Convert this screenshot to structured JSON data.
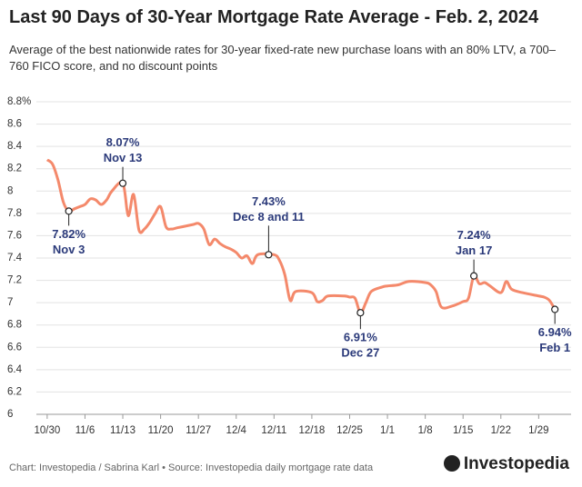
{
  "chart_data": {
    "type": "line",
    "title": "Last 90 Days of 30-Year Mortgage Rate Average - Feb. 2, 2024",
    "subtitle": "Average of the best nationwide rates for 30-year fixed-rate new purchase loans with an 80% LTV, a 700–760 FICO score, and no discount points",
    "x": [
      0,
      1,
      2,
      3,
      4,
      5,
      6,
      7,
      8,
      9,
      10,
      11,
      12,
      14,
      15,
      16,
      17,
      18,
      19,
      20,
      21,
      22,
      23,
      24,
      25,
      27,
      28,
      29,
      30,
      31,
      32,
      33,
      34,
      35,
      36,
      37,
      38,
      39,
      42,
      43,
      44,
      45,
      46,
      49,
      50,
      51,
      52,
      55,
      56,
      57,
      58,
      59,
      60,
      62,
      63,
      65,
      67,
      70,
      71,
      72,
      73,
      75,
      77,
      78,
      79,
      80,
      81,
      82,
      84,
      85,
      86,
      88,
      91,
      92,
      93,
      94
    ],
    "series": [
      {
        "name": "30-Year Mortgage Rate Average",
        "color": "#f4896b",
        "values": [
          8.28,
          8.24,
          8.1,
          7.9,
          7.82,
          7.84,
          7.86,
          7.88,
          7.93,
          7.92,
          7.88,
          7.92,
          8.0,
          8.07,
          7.78,
          7.97,
          7.65,
          7.66,
          7.72,
          7.8,
          7.86,
          7.68,
          7.66,
          7.67,
          7.68,
          7.7,
          7.71,
          7.66,
          7.52,
          7.57,
          7.53,
          7.5,
          7.48,
          7.45,
          7.4,
          7.42,
          7.35,
          7.43,
          7.43,
          7.38,
          7.25,
          7.02,
          7.1,
          7.09,
          7.01,
          7.02,
          7.06,
          7.06,
          7.05,
          7.04,
          6.91,
          7.0,
          7.1,
          7.14,
          7.15,
          7.16,
          7.19,
          7.18,
          7.16,
          7.1,
          6.96,
          6.97,
          7.01,
          7.04,
          7.24,
          7.17,
          7.18,
          7.15,
          7.09,
          7.19,
          7.12,
          7.09,
          7.06,
          7.05,
          7.02,
          6.94
        ]
      }
    ],
    "xlim": [
      -2,
      97
    ],
    "xticks": [
      {
        "value": 0,
        "label": "10/30"
      },
      {
        "value": 7,
        "label": "11/6"
      },
      {
        "value": 14,
        "label": "11/13"
      },
      {
        "value": 21,
        "label": "11/20"
      },
      {
        "value": 28,
        "label": "11/27"
      },
      {
        "value": 35,
        "label": "12/4"
      },
      {
        "value": 42,
        "label": "12/11"
      },
      {
        "value": 49,
        "label": "12/18"
      },
      {
        "value": 56,
        "label": "12/25"
      },
      {
        "value": 63,
        "label": "1/1"
      },
      {
        "value": 70,
        "label": "1/8"
      },
      {
        "value": 77,
        "label": "1/15"
      },
      {
        "value": 84,
        "label": "1/22"
      },
      {
        "value": 91,
        "label": "1/29"
      }
    ],
    "ylim": [
      6.0,
      8.8
    ],
    "yticks": [
      6.0,
      6.2,
      6.4,
      6.6,
      6.8,
      7.0,
      7.2,
      7.4,
      7.6,
      7.8,
      8.0,
      8.2,
      8.4,
      8.6,
      {
        "value": 8.8,
        "label": "8.8%"
      }
    ],
    "grid": true,
    "annotations": [
      {
        "x": 4,
        "value": 7.82,
        "label": [
          "7.82%",
          "Nov 3"
        ]
      },
      {
        "x": 14,
        "value": 8.07,
        "label": [
          "8.07%",
          "Nov 13"
        ]
      },
      {
        "x": 41,
        "value": 7.43,
        "label": [
          "7.43%",
          "Dec 8 and 11"
        ]
      },
      {
        "x": 58,
        "value": 6.91,
        "label": [
          "6.91%",
          "Dec 27"
        ]
      },
      {
        "x": 79,
        "value": 7.24,
        "label": [
          "7.24%",
          "Jan 17"
        ]
      },
      {
        "x": 94,
        "value": 6.94,
        "label": [
          "6.94%",
          "Feb 1"
        ]
      }
    ],
    "footer": "Chart: Investopedia / Sabrina Karl • Source: Investopedia daily mortgage rate data",
    "logo": "Investopedia"
  }
}
